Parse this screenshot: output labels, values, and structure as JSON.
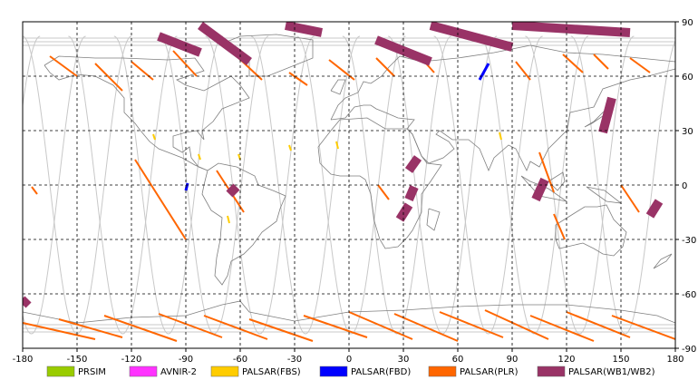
{
  "map": {
    "lon_range": [
      -180,
      180
    ],
    "lat_range": [
      -90,
      90
    ],
    "grid": true,
    "grid_style": "dashed",
    "x_ticks": [
      "-180",
      "-150",
      "-120",
      "-90",
      "-60",
      "-30",
      "0",
      "30",
      "60",
      "90",
      "120",
      "150",
      "180"
    ],
    "y_ticks": [
      "90",
      "60",
      "30",
      "0",
      "-30",
      "-60",
      "-90"
    ],
    "y_tick_values": [
      90,
      60,
      30,
      0,
      -30,
      -60,
      -90
    ],
    "x_tick_values": [
      -180,
      -150,
      -120,
      -90,
      -60,
      -30,
      0,
      30,
      60,
      90,
      120,
      150,
      180
    ],
    "colors": {
      "background": "#ffffff",
      "coastline": "#7f7f7f",
      "orbit_track": "#c8c8c8",
      "grid": "#000000"
    }
  },
  "legend": {
    "items": [
      {
        "label": "PRSIM",
        "color": "#99cc00"
      },
      {
        "label": "AVNIR-2",
        "color": "#ff33ff"
      },
      {
        "label": "PALSAR(FBS)",
        "color": "#ffcc00"
      },
      {
        "label": "PALSAR(FBD)",
        "color": "#0000ff"
      },
      {
        "label": "PALSAR(PLR)",
        "color": "#ff6600"
      },
      {
        "label": "PALSAR(WB1/WB2)",
        "color": "#993366"
      }
    ]
  },
  "observations": {
    "wb": [
      {
        "lon": [
          -105,
          -82
        ],
        "lat": [
          82,
          73
        ]
      },
      {
        "lon": [
          -82,
          -55
        ],
        "lat": [
          88,
          68
        ]
      },
      {
        "lon": [
          -35,
          -15
        ],
        "lat": [
          88,
          84
        ]
      },
      {
        "lon": [
          15,
          45
        ],
        "lat": [
          80,
          68
        ]
      },
      {
        "lon": [
          45,
          90
        ],
        "lat": [
          88,
          76
        ]
      },
      {
        "lon": [
          90,
          155
        ],
        "lat": [
          88,
          84
        ]
      },
      {
        "lon": [
          38,
          33
        ],
        "lat": [
          15,
          8
        ]
      },
      {
        "lon": [
          36,
          33
        ],
        "lat": [
          -1,
          -8
        ]
      },
      {
        "lon": [
          33,
          28
        ],
        "lat": [
          -11,
          -19
        ]
      },
      {
        "lon": [
          108,
          103
        ],
        "lat": [
          3,
          -8
        ]
      },
      {
        "lon": [
          145,
          140
        ],
        "lat": [
          48,
          29
        ]
      },
      {
        "lon": [
          171,
          166
        ],
        "lat": [
          -9,
          -17
        ]
      },
      {
        "lon": [
          -62,
          -66
        ],
        "lat": [
          -1,
          -5
        ]
      },
      {
        "lon": [
          -177,
          -180
        ],
        "lat": [
          -63,
          -66
        ]
      }
    ],
    "fbd": [
      {
        "lon": [
          77,
          72
        ],
        "lat": [
          67,
          58
        ]
      },
      {
        "lon": [
          -89,
          -90
        ],
        "lat": [
          1,
          -3
        ]
      }
    ],
    "fbs": [
      {
        "lon": [
          -108,
          -107
        ],
        "lat": [
          28,
          25
        ]
      },
      {
        "lon": [
          -83,
          -82
        ],
        "lat": [
          17,
          14
        ]
      },
      {
        "lon": [
          -61,
          -60
        ],
        "lat": [
          17,
          14
        ]
      },
      {
        "lon": [
          -67,
          -66
        ],
        "lat": [
          -17,
          -21
        ]
      },
      {
        "lon": [
          -7,
          -6
        ],
        "lat": [
          24,
          20
        ]
      },
      {
        "lon": [
          83,
          84
        ],
        "lat": [
          29,
          25
        ]
      },
      {
        "lon": [
          -33,
          -32
        ],
        "lat": [
          22,
          19
        ]
      }
    ],
    "plr_tracks": [
      {
        "lon": [
          -165,
          -150
        ],
        "lat": [
          71,
          60
        ]
      },
      {
        "lon": [
          -140,
          -125
        ],
        "lat": [
          67,
          52
        ]
      },
      {
        "lon": [
          -120,
          -108
        ],
        "lat": [
          68,
          58
        ]
      },
      {
        "lon": [
          -97,
          -84
        ],
        "lat": [
          74,
          60
        ]
      },
      {
        "lon": [
          -63,
          -48
        ],
        "lat": [
          72,
          58
        ]
      },
      {
        "lon": [
          -33,
          -23
        ],
        "lat": [
          62,
          55
        ]
      },
      {
        "lon": [
          -11,
          3
        ],
        "lat": [
          69,
          58
        ]
      },
      {
        "lon": [
          15,
          25
        ],
        "lat": [
          70,
          60
        ]
      },
      {
        "lon": [
          38,
          47
        ],
        "lat": [
          72,
          62
        ]
      },
      {
        "lon": [
          92,
          100
        ],
        "lat": [
          68,
          58
        ]
      },
      {
        "lon": [
          118,
          129
        ],
        "lat": [
          72,
          62
        ]
      },
      {
        "lon": [
          135,
          143
        ],
        "lat": [
          72,
          64
        ]
      },
      {
        "lon": [
          155,
          166
        ],
        "lat": [
          70,
          62
        ]
      },
      {
        "lon": [
          -118,
          -90
        ],
        "lat": [
          14,
          -30
        ]
      },
      {
        "lon": [
          -73,
          -58
        ],
        "lat": [
          8,
          -15
        ]
      },
      {
        "lon": [
          16,
          22
        ],
        "lat": [
          0,
          -8
        ]
      },
      {
        "lon": [
          105,
          113
        ],
        "lat": [
          18,
          -4
        ]
      },
      {
        "lon": [
          113,
          119
        ],
        "lat": [
          -16,
          -30
        ]
      },
      {
        "lon": [
          150,
          160
        ],
        "lat": [
          0,
          -15
        ]
      },
      {
        "lon": [
          -175,
          -172
        ],
        "lat": [
          -1,
          -5
        ]
      }
    ],
    "antarctic_plr": [
      {
        "lon": [
          -180,
          -140
        ],
        "lat": [
          -76,
          -85
        ]
      },
      {
        "lon": [
          -160,
          -125
        ],
        "lat": [
          -74,
          -84
        ]
      },
      {
        "lon": [
          -135,
          -95
        ],
        "lat": [
          -72,
          -86
        ]
      },
      {
        "lon": [
          -105,
          -70
        ],
        "lat": [
          -71,
          -84
        ]
      },
      {
        "lon": [
          -80,
          -45
        ],
        "lat": [
          -72,
          -85
        ]
      },
      {
        "lon": [
          -55,
          -20
        ],
        "lat": [
          -74,
          -86
        ]
      },
      {
        "lon": [
          -25,
          10
        ],
        "lat": [
          -72,
          -84
        ]
      },
      {
        "lon": [
          0,
          35
        ],
        "lat": [
          -70,
          -85
        ]
      },
      {
        "lon": [
          25,
          60
        ],
        "lat": [
          -71,
          -86
        ]
      },
      {
        "lon": [
          50,
          85
        ],
        "lat": [
          -70,
          -84
        ]
      },
      {
        "lon": [
          75,
          110
        ],
        "lat": [
          -69,
          -85
        ]
      },
      {
        "lon": [
          100,
          135
        ],
        "lat": [
          -72,
          -86
        ]
      },
      {
        "lon": [
          120,
          155
        ],
        "lat": [
          -70,
          -84
        ]
      },
      {
        "lon": [
          145,
          180
        ],
        "lat": [
          -72,
          -85
        ]
      }
    ]
  }
}
